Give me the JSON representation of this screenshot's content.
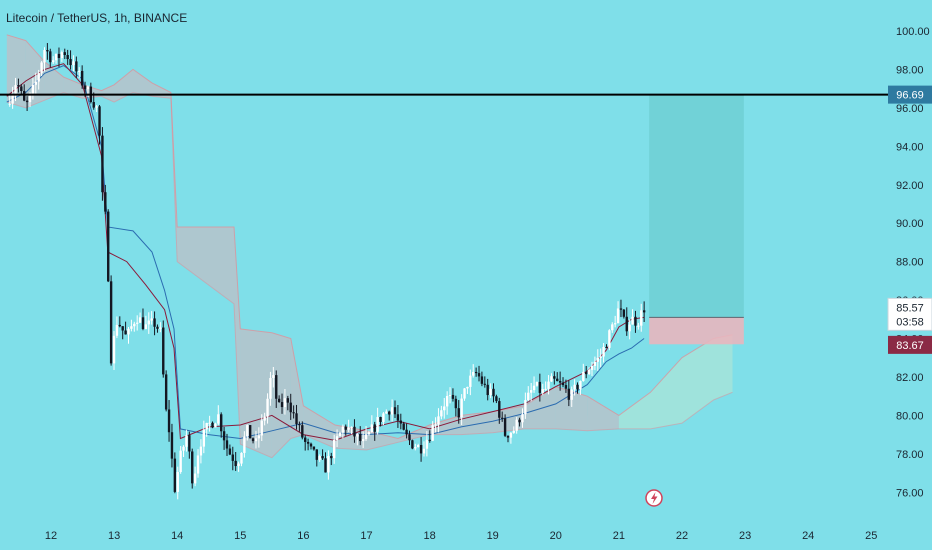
{
  "colors": {
    "background": "#7fdfe9",
    "bull": "#ffffff",
    "bear": "#131722",
    "tenkan": "#2b6cb0",
    "kijun": "#8b1a3a",
    "cloud_bear": "#e9aab0",
    "cloud_bull": "#b9e6d2",
    "target_zone": "#6fd0d3",
    "stop_zone": "#e8b6be",
    "level_line": "#000000",
    "level_badge": "#2e7aa0",
    "price_badge": "#ffffff",
    "low_badge": "#8b2a45"
  },
  "chart_data": {
    "type": "candlestick",
    "title": "Litecoin / TetherUS, 1h, BINANCE",
    "x_tick_labels": [
      "12",
      "13",
      "14",
      "15",
      "16",
      "17",
      "18",
      "19",
      "20",
      "21",
      "22",
      "23",
      "24",
      "25"
    ],
    "y_tick_labels": [
      "100.00",
      "98.00",
      "96.00",
      "94.00",
      "92.00",
      "90.00",
      "88.00",
      "86.00",
      "84.00",
      "82.00",
      "80.00",
      "78.00",
      "76.00"
    ],
    "ylim": [
      74.8,
      101.2
    ],
    "xlim": [
      11.3,
      25.2
    ],
    "grid": false,
    "horizontal_level": {
      "value": 96.69,
      "label": "96.69"
    },
    "price_labels": [
      {
        "value": 85.57,
        "label": "85.57",
        "sub": "03:58"
      },
      {
        "value": 83.67,
        "label": "83.67"
      }
    ],
    "position_tool": {
      "x_start": 21.48,
      "x_end": 22.98,
      "entry": 85.1,
      "target": 96.69,
      "stop": 83.7
    },
    "close_path": [
      [
        11.3,
        96.2
      ],
      [
        11.45,
        97.4
      ],
      [
        11.6,
        96.0
      ],
      [
        11.75,
        97.2
      ],
      [
        11.9,
        99.1
      ],
      [
        12.05,
        98.4
      ],
      [
        12.2,
        99.0
      ],
      [
        12.35,
        98.2
      ],
      [
        12.5,
        97.3
      ],
      [
        12.65,
        96.5
      ],
      [
        12.75,
        95.8
      ],
      [
        12.82,
        91.0
      ],
      [
        12.88,
        90.0
      ],
      [
        12.95,
        83.0
      ],
      [
        13.05,
        85.0
      ],
      [
        13.2,
        84.0
      ],
      [
        13.35,
        85.2
      ],
      [
        13.5,
        84.6
      ],
      [
        13.65,
        84.8
      ],
      [
        13.75,
        84.2
      ],
      [
        13.8,
        80.5
      ],
      [
        13.85,
        79.8
      ],
      [
        13.9,
        78.5
      ],
      [
        13.95,
        76.0
      ],
      [
        14.05,
        77.8
      ],
      [
        14.15,
        79.0
      ],
      [
        14.25,
        76.5
      ],
      [
        14.35,
        78.5
      ],
      [
        14.5,
        79.5
      ],
      [
        14.65,
        80.0
      ],
      [
        14.8,
        78.2
      ],
      [
        14.95,
        77.5
      ],
      [
        15.1,
        79.2
      ],
      [
        15.25,
        78.5
      ],
      [
        15.4,
        80.2
      ],
      [
        15.5,
        82.3
      ],
      [
        15.6,
        80.3
      ],
      [
        15.75,
        80.9
      ],
      [
        15.9,
        79.5
      ],
      [
        16.05,
        78.4
      ],
      [
        16.2,
        77.8
      ],
      [
        16.35,
        77.3
      ],
      [
        16.5,
        78.5
      ],
      [
        16.65,
        79.5
      ],
      [
        16.8,
        79.0
      ],
      [
        16.95,
        78.5
      ],
      [
        17.1,
        79.3
      ],
      [
        17.25,
        80.0
      ],
      [
        17.4,
        80.5
      ],
      [
        17.55,
        79.2
      ],
      [
        17.7,
        78.6
      ],
      [
        17.85,
        78.3
      ],
      [
        18.0,
        79.0
      ],
      [
        18.15,
        80.2
      ],
      [
        18.3,
        81.0
      ],
      [
        18.45,
        80.0
      ],
      [
        18.6,
        81.7
      ],
      [
        18.75,
        82.2
      ],
      [
        18.9,
        81.3
      ],
      [
        19.05,
        80.8
      ],
      [
        19.2,
        79.0
      ],
      [
        19.35,
        79.3
      ],
      [
        19.5,
        80.5
      ],
      [
        19.65,
        81.5
      ],
      [
        19.8,
        81.2
      ],
      [
        19.95,
        81.8
      ],
      [
        20.1,
        81.5
      ],
      [
        20.25,
        81.0
      ],
      [
        20.4,
        81.9
      ],
      [
        20.55,
        82.6
      ],
      [
        20.7,
        83.0
      ],
      [
        20.85,
        84.2
      ],
      [
        21.0,
        85.6
      ],
      [
        21.1,
        84.6
      ],
      [
        21.2,
        85.0
      ],
      [
        21.3,
        84.9
      ],
      [
        21.4,
        85.6
      ]
    ],
    "tenkan_path": [
      [
        11.3,
        96.3
      ],
      [
        11.6,
        96.8
      ],
      [
        11.9,
        97.8
      ],
      [
        12.2,
        98.2
      ],
      [
        12.5,
        97.5
      ],
      [
        12.8,
        94.0
      ],
      [
        12.9,
        89.8
      ],
      [
        13.3,
        89.6
      ],
      [
        13.6,
        88.5
      ],
      [
        13.8,
        86.5
      ],
      [
        13.95,
        84.5
      ],
      [
        14.05,
        79.3
      ],
      [
        14.5,
        79.0
      ],
      [
        15.0,
        78.8
      ],
      [
        15.5,
        79.2
      ],
      [
        16.0,
        79.6
      ],
      [
        16.5,
        79.1
      ],
      [
        17.0,
        79.0
      ],
      [
        17.5,
        79.1
      ],
      [
        18.0,
        79.0
      ],
      [
        18.5,
        79.4
      ],
      [
        19.0,
        79.7
      ],
      [
        19.5,
        80.1
      ],
      [
        20.0,
        80.6
      ],
      [
        20.5,
        81.6
      ],
      [
        20.8,
        82.8
      ],
      [
        21.0,
        83.2
      ],
      [
        21.2,
        83.5
      ],
      [
        21.4,
        84.0
      ]
    ],
    "kijun_path": [
      [
        11.3,
        96.6
      ],
      [
        11.6,
        97.4
      ],
      [
        11.9,
        98.0
      ],
      [
        12.2,
        98.3
      ],
      [
        12.5,
        97.2
      ],
      [
        12.8,
        93.5
      ],
      [
        12.9,
        88.5
      ],
      [
        13.2,
        88.0
      ],
      [
        13.5,
        86.8
      ],
      [
        13.8,
        85.5
      ],
      [
        13.95,
        83.5
      ],
      [
        14.05,
        78.8
      ],
      [
        14.5,
        79.4
      ],
      [
        15.0,
        79.5
      ],
      [
        15.5,
        80.0
      ],
      [
        16.0,
        79.0
      ],
      [
        16.5,
        78.7
      ],
      [
        17.0,
        79.3
      ],
      [
        17.5,
        79.7
      ],
      [
        18.0,
        79.3
      ],
      [
        18.5,
        79.8
      ],
      [
        19.0,
        80.2
      ],
      [
        19.5,
        80.6
      ],
      [
        20.0,
        81.5
      ],
      [
        20.5,
        82.3
      ],
      [
        20.8,
        83.4
      ],
      [
        21.0,
        84.6
      ],
      [
        21.2,
        85.0
      ],
      [
        21.4,
        85.1
      ]
    ],
    "cloud_upper": [
      [
        11.3,
        99.8
      ],
      [
        11.6,
        99.5
      ],
      [
        11.9,
        98.4
      ],
      [
        12.2,
        97.6
      ],
      [
        12.5,
        97.2
      ],
      [
        12.8,
        96.9
      ],
      [
        13.0,
        97.2
      ],
      [
        13.3,
        98.0
      ],
      [
        13.6,
        97.3
      ],
      [
        13.9,
        96.8
      ],
      [
        14.0,
        89.8
      ],
      [
        14.9,
        89.8
      ],
      [
        15.0,
        84.5
      ],
      [
        15.5,
        84.3
      ],
      [
        15.8,
        84.0
      ],
      [
        16.0,
        80.5
      ],
      [
        16.5,
        79.5
      ],
      [
        17.0,
        79.2
      ],
      [
        17.5,
        78.8
      ],
      [
        18.0,
        79.5
      ],
      [
        18.5,
        80.0
      ],
      [
        19.0,
        80.2
      ],
      [
        19.5,
        80.5
      ],
      [
        20.0,
        81.5
      ],
      [
        20.5,
        81.0
      ],
      [
        21.0,
        80.0
      ],
      [
        21.5,
        81.2
      ],
      [
        22.0,
        83.0
      ],
      [
        22.5,
        84.0
      ],
      [
        22.8,
        84.2
      ]
    ],
    "cloud_lower": [
      [
        11.3,
        96.3
      ],
      [
        11.6,
        96.0
      ],
      [
        11.9,
        96.4
      ],
      [
        12.2,
        96.8
      ],
      [
        12.5,
        96.5
      ],
      [
        12.8,
        96.6
      ],
      [
        13.0,
        96.3
      ],
      [
        13.3,
        96.8
      ],
      [
        13.6,
        96.6
      ],
      [
        13.9,
        96.5
      ],
      [
        14.0,
        88.0
      ],
      [
        14.9,
        85.8
      ],
      [
        15.0,
        78.5
      ],
      [
        15.5,
        77.8
      ],
      [
        15.8,
        78.8
      ],
      [
        16.0,
        79.0
      ],
      [
        16.5,
        78.3
      ],
      [
        17.0,
        78.2
      ],
      [
        17.5,
        78.6
      ],
      [
        18.0,
        79.0
      ],
      [
        18.5,
        79.0
      ],
      [
        19.0,
        79.1
      ],
      [
        19.5,
        79.3
      ],
      [
        20.0,
        79.3
      ],
      [
        20.5,
        79.2
      ],
      [
        21.0,
        79.3
      ],
      [
        21.5,
        79.3
      ],
      [
        22.0,
        79.6
      ],
      [
        22.5,
        80.8
      ],
      [
        22.8,
        81.2
      ]
    ]
  }
}
